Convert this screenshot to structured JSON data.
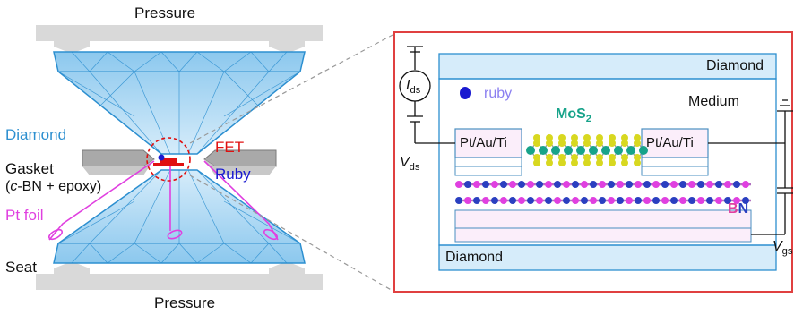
{
  "left_panel": {
    "pressure_top": "Pressure",
    "pressure_bottom": "Pressure",
    "diamond": "Diamond",
    "gasket_line1": "Gasket",
    "gasket_line2_prefix": "(",
    "gasket_line2_italic": "c",
    "gasket_line2_rest": "-BN + epoxy)",
    "pt_foil": "Pt foil",
    "seat": "Seat",
    "fet": "FET",
    "ruby": "Ruby"
  },
  "right_panel": {
    "diamond_top": "Diamond",
    "diamond_bottom": "Diamond",
    "medium": "Medium",
    "ruby": "ruby",
    "mos2_main": "MoS",
    "mos2_sub": "2",
    "electrode_left": "Pt/Au/Ti",
    "electrode_right": "Pt/Au/Ti",
    "bn_b": "B",
    "bn_n": "N",
    "ids_symbol": "I",
    "ids_sub": "ds",
    "vds_symbol": "V",
    "vds_sub": "ds",
    "vgs_symbol": "V",
    "vgs_sub": "gs"
  },
  "colors": {
    "diamond_blue": "#2c8fd0",
    "fet_red": "#e01010",
    "ruby_blue": "#1a1ad0",
    "pt_magenta": "#e040e0",
    "mos2_teal": "#17a38a",
    "sulfur_yellow": "#d8d820",
    "frame_red": "#e04040"
  }
}
